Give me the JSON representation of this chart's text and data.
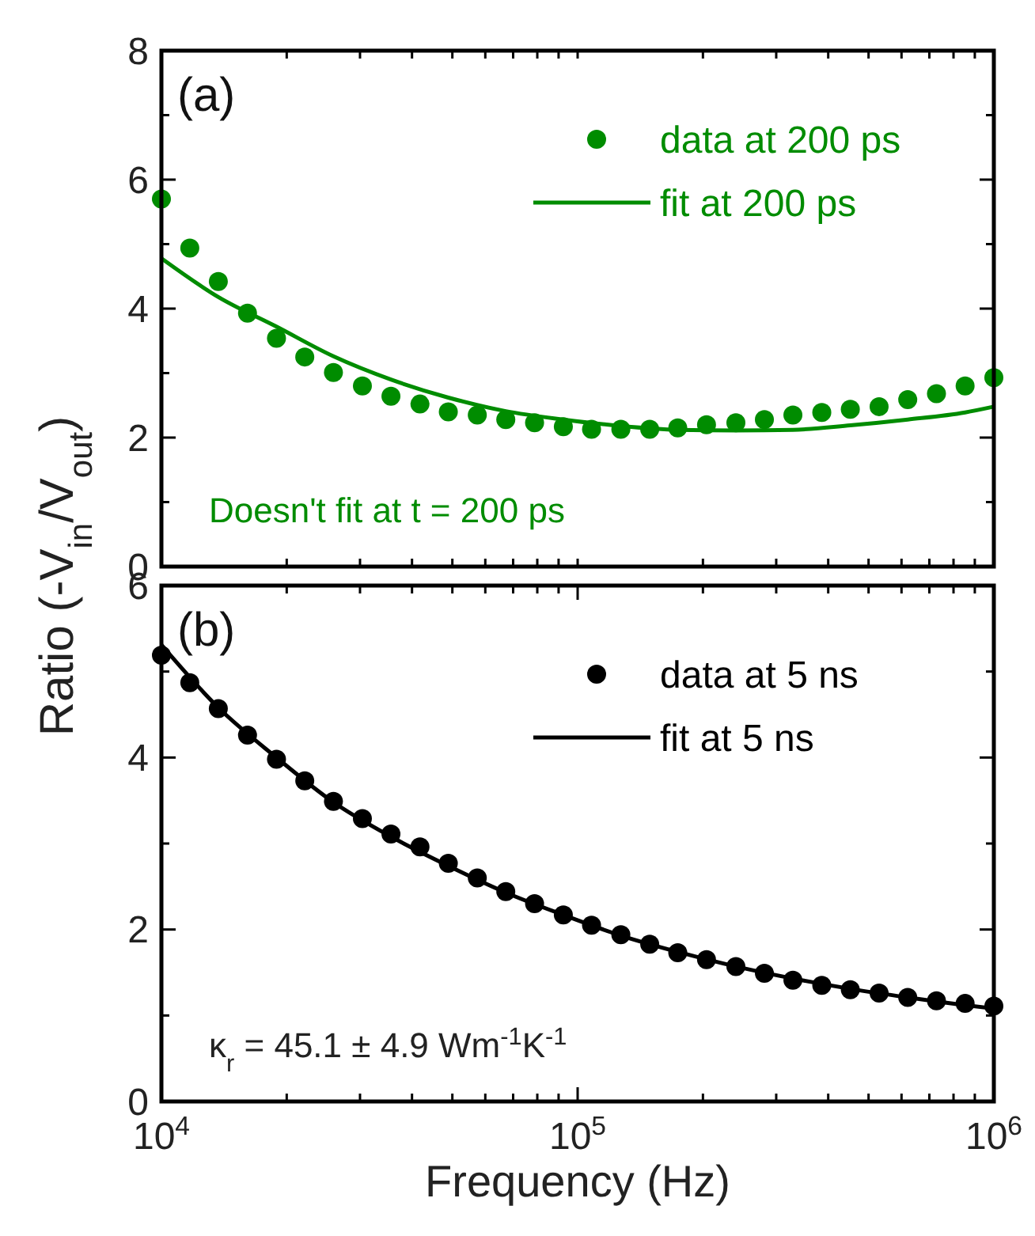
{
  "chart_data": [
    {
      "type": "scatter",
      "title": "(a)",
      "ylabel": "Ratio (-V$_{in}$/V$_{out}$)",
      "log": "x",
      "xlim": [
        10000,
        1000000
      ],
      "ylim": [
        0,
        8
      ],
      "xticks": [
        {
          "value": 10000,
          "label": null
        },
        {
          "value": 20000,
          "label": null
        },
        {
          "value": 30000,
          "label": null
        },
        {
          "value": 40000,
          "label": null
        },
        {
          "value": 50000,
          "label": null
        },
        {
          "value": 60000,
          "label": null
        },
        {
          "value": 70000,
          "label": null
        },
        {
          "value": 80000,
          "label": null
        },
        {
          "value": 90000,
          "label": null
        },
        {
          "value": 100000,
          "label": null
        },
        {
          "value": 200000,
          "label": null
        },
        {
          "value": 300000,
          "label": null
        },
        {
          "value": 400000,
          "label": null
        },
        {
          "value": 500000,
          "label": null
        },
        {
          "value": 600000,
          "label": null
        },
        {
          "value": 700000,
          "label": null
        },
        {
          "value": 800000,
          "label": null
        },
        {
          "value": 900000,
          "label": null
        },
        {
          "value": 1000000,
          "label": null
        }
      ],
      "yticks": [
        0,
        {
          "value": 1,
          "label": null
        },
        2,
        {
          "value": 3,
          "label": null
        },
        4,
        {
          "value": 5,
          "label": null
        },
        6,
        {
          "value": 7,
          "label": null
        },
        8
      ],
      "tick_labels": "y",
      "legend": "top right",
      "grid": false,
      "annotations": [
        "Doesn't fit at t = 200 ps"
      ],
      "x": [
        10000,
        11700,
        13700,
        16100,
        18900,
        22100,
        25900,
        30400,
        35600,
        41800,
        48900,
        57400,
        67200,
        78800,
        92400,
        108000,
        127000,
        149000,
        174000,
        204000,
        240000,
        281000,
        329000,
        386000,
        452000,
        530000,
        621000,
        728000,
        853000,
        1000000
      ],
      "series": [
        {
          "name": "data at 200 ps",
          "type": "scatter",
          "marker": "circle",
          "color": "#008c00",
          "values": [
            5.7,
            4.94,
            4.42,
            3.93,
            3.54,
            3.25,
            3.01,
            2.8,
            2.64,
            2.52,
            2.4,
            2.35,
            2.28,
            2.23,
            2.17,
            2.13,
            2.13,
            2.13,
            2.15,
            2.2,
            2.23,
            2.28,
            2.35,
            2.39,
            2.44,
            2.48,
            2.59,
            2.68,
            2.8,
            2.93
          ]
        },
        {
          "name": "fit at 200 ps",
          "type": "line",
          "marker": "none",
          "line_style": "solid",
          "color": "#008c00",
          "x": [
            10000,
            13700,
            18900,
            25900,
            35600,
            48900,
            67200,
            92400,
            127000,
            174000,
            240000,
            329000,
            452000,
            621000,
            853000,
            1000000
          ],
          "values": [
            4.78,
            4.18,
            3.72,
            3.26,
            2.9,
            2.62,
            2.41,
            2.28,
            2.18,
            2.12,
            2.11,
            2.12,
            2.19,
            2.28,
            2.39,
            2.48
          ]
        }
      ]
    },
    {
      "type": "scatter",
      "title": "(b)",
      "xlabel": "Frequency (Hz)",
      "log": "x",
      "xlim": [
        10000,
        1000000
      ],
      "ylim": [
        0,
        6
      ],
      "xticks": [
        {
          "value": 10000,
          "label": "10$^{4}$"
        },
        {
          "value": 20000,
          "label": null
        },
        {
          "value": 30000,
          "label": null
        },
        {
          "value": 40000,
          "label": null
        },
        {
          "value": 50000,
          "label": null
        },
        {
          "value": 60000,
          "label": null
        },
        {
          "value": 70000,
          "label": null
        },
        {
          "value": 80000,
          "label": null
        },
        {
          "value": 90000,
          "label": null
        },
        {
          "value": 100000,
          "label": "10$^{5}$"
        },
        {
          "value": 200000,
          "label": null
        },
        {
          "value": 300000,
          "label": null
        },
        {
          "value": 400000,
          "label": null
        },
        {
          "value": 500000,
          "label": null
        },
        {
          "value": 600000,
          "label": null
        },
        {
          "value": 700000,
          "label": null
        },
        {
          "value": 800000,
          "label": null
        },
        {
          "value": 900000,
          "label": null
        },
        {
          "value": 1000000,
          "label": "10$^{6}$"
        }
      ],
      "yticks": [
        0,
        {
          "value": 1,
          "label": null
        },
        2,
        {
          "value": 3,
          "label": null
        },
        4,
        {
          "value": 5,
          "label": null
        },
        6
      ],
      "legend": "top right",
      "grid": false,
      "annotations": [
        "κ$_{r}$ = 45.1 ± 4.9 Wm$^{-1}$K$^{-1}$"
      ],
      "x": [
        10000,
        11700,
        13700,
        16100,
        18900,
        22100,
        25900,
        30400,
        35600,
        41800,
        48900,
        57400,
        67200,
        78800,
        92400,
        108000,
        127000,
        149000,
        174000,
        204000,
        240000,
        281000,
        329000,
        386000,
        452000,
        530000,
        621000,
        728000,
        853000,
        1000000
      ],
      "series": [
        {
          "name": "data at 5 ns",
          "type": "scatter",
          "marker": "circle",
          "color": "#000000",
          "values": [
            5.19,
            4.87,
            4.57,
            4.26,
            3.98,
            3.73,
            3.49,
            3.29,
            3.11,
            2.96,
            2.77,
            2.6,
            2.44,
            2.3,
            2.17,
            2.05,
            1.94,
            1.83,
            1.73,
            1.65,
            1.57,
            1.49,
            1.41,
            1.35,
            1.3,
            1.26,
            1.21,
            1.17,
            1.14,
            1.11
          ]
        },
        {
          "name": "fit at 5 ns",
          "type": "line",
          "marker": "none",
          "line_style": "solid",
          "color": "#000000",
          "x": [
            10000,
            13700,
            18900,
            25900,
            35600,
            48900,
            67200,
            92400,
            127000,
            174000,
            240000,
            329000,
            452000,
            621000,
            853000,
            1000000
          ],
          "values": [
            5.31,
            4.58,
            4.0,
            3.48,
            3.08,
            2.74,
            2.43,
            2.17,
            1.93,
            1.74,
            1.57,
            1.43,
            1.31,
            1.21,
            1.12,
            1.08
          ]
        }
      ]
    }
  ]
}
